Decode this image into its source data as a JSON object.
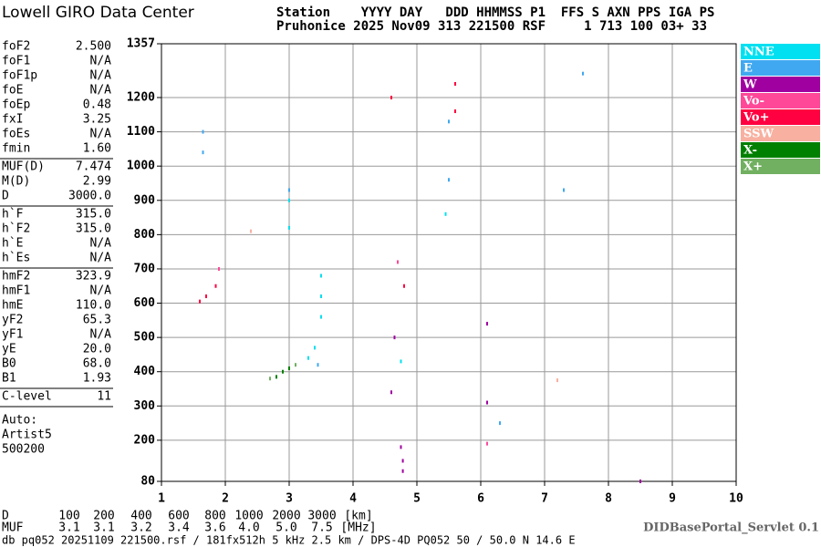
{
  "header": {
    "logo": "Lowell GIRO Data Center",
    "labels": "Station    YYYY DAY   DDD HHMMSS P1  FFS S AXN PPS IGA PS",
    "values": "Pruhonice 2025 Nov09 313 221500 RSF     1 713 100 03+ 33"
  },
  "parameters": [
    [
      [
        "foF2",
        "2.500"
      ],
      [
        "foF1",
        "N/A"
      ],
      [
        "foF1p",
        "N/A"
      ],
      [
        "foE",
        "N/A"
      ],
      [
        "foEp",
        "0.48"
      ],
      [
        "fxI",
        "3.25"
      ],
      [
        "foEs",
        "N/A"
      ],
      [
        "fmin",
        "1.60"
      ]
    ],
    [
      [
        "MUF(D)",
        "7.474"
      ],
      [
        "M(D)",
        "2.99"
      ],
      [
        "D",
        "3000.0"
      ]
    ],
    [
      [
        "h`F",
        "315.0"
      ],
      [
        "h`F2",
        "315.0"
      ],
      [
        "h`E",
        "N/A"
      ],
      [
        "h`Es",
        "N/A"
      ]
    ],
    [
      [
        "hmF2",
        "323.9"
      ],
      [
        "hmF1",
        "N/A"
      ],
      [
        "hmE",
        "110.0"
      ],
      [
        "yF2",
        "65.3"
      ],
      [
        "yF1",
        "N/A"
      ],
      [
        "yE",
        "20.0"
      ],
      [
        "B0",
        "68.0"
      ],
      [
        "B1",
        "1.93"
      ]
    ],
    [
      [
        "C-level",
        "11"
      ]
    ]
  ],
  "auto": [
    "Auto:",
    "Artist5",
    "500200"
  ],
  "chart_data": {
    "type": "scatter",
    "xlim": [
      1,
      10
    ],
    "xticks": [
      1,
      2,
      3,
      4,
      5,
      6,
      7,
      8,
      9,
      10
    ],
    "ylim": [
      80,
      1357
    ],
    "yticks": [
      80,
      200,
      300,
      400,
      500,
      600,
      700,
      800,
      900,
      1000,
      1100,
      1200,
      1357
    ],
    "grid": true,
    "series": [
      {
        "name": "NNE",
        "color": "#00e0f0",
        "x": [
          3.5,
          3.5,
          3.5,
          3.4,
          3.3,
          4.75,
          3.0,
          3.0,
          5.45
        ],
        "values": [
          560,
          620,
          680,
          470,
          440,
          430,
          900,
          820,
          860
        ]
      },
      {
        "name": "E",
        "color": "#40a8f0",
        "x": [
          1.65,
          1.65,
          3.0,
          5.5,
          5.5,
          7.6,
          7.3,
          3.45,
          6.3
        ],
        "values": [
          1100,
          1040,
          930,
          1130,
          960,
          1270,
          930,
          420,
          250
        ]
      },
      {
        "name": "W",
        "color": "#a000a0",
        "x": [
          4.78,
          4.78,
          4.75,
          6.1,
          6.1,
          4.65,
          4.6,
          8.5
        ],
        "values": [
          140,
          110,
          180,
          310,
          540,
          500,
          340,
          80
        ]
      },
      {
        "name": "Vo-",
        "color": "#ff4898",
        "x": [
          6.1,
          1.9,
          4.7
        ],
        "values": [
          190,
          700,
          720
        ]
      },
      {
        "name": "Vo+",
        "color": "#ff0040",
        "x": [
          1.6,
          1.7,
          1.85,
          5.6,
          5.6,
          4.6,
          4.8
        ],
        "values": [
          605,
          620,
          650,
          1160,
          1240,
          1200,
          650
        ]
      },
      {
        "name": "SSW",
        "color": "#f8b0a0",
        "x": [
          7.2,
          2.4
        ],
        "values": [
          375,
          810
        ]
      },
      {
        "name": "X-",
        "color": "#008000",
        "x": [
          2.8,
          2.9,
          3.0
        ],
        "values": [
          385,
          400,
          410
        ]
      },
      {
        "name": "X+",
        "color": "#70b060",
        "x": [
          2.7,
          3.1
        ],
        "values": [
          380,
          420
        ]
      }
    ]
  },
  "bottom": {
    "d_label": "D",
    "d_values": [
      "100",
      "200",
      "400",
      "600",
      "800",
      "1000",
      "2000",
      "3000",
      "[km]"
    ],
    "muf_label": "MUF",
    "muf_values": [
      "3.1",
      "3.1",
      "3.2",
      "3.4",
      "3.6",
      "4.0",
      "5.0",
      "7.5",
      "[MHz]"
    ],
    "footer": "db pq052 20251109 221500.rsf / 181fx512h 5 kHz 2.5 km / DPS-4D PQ052 50 / 50.0 N 14.6 E",
    "servlet": "DIDBasePortal_Servlet 0.1"
  }
}
